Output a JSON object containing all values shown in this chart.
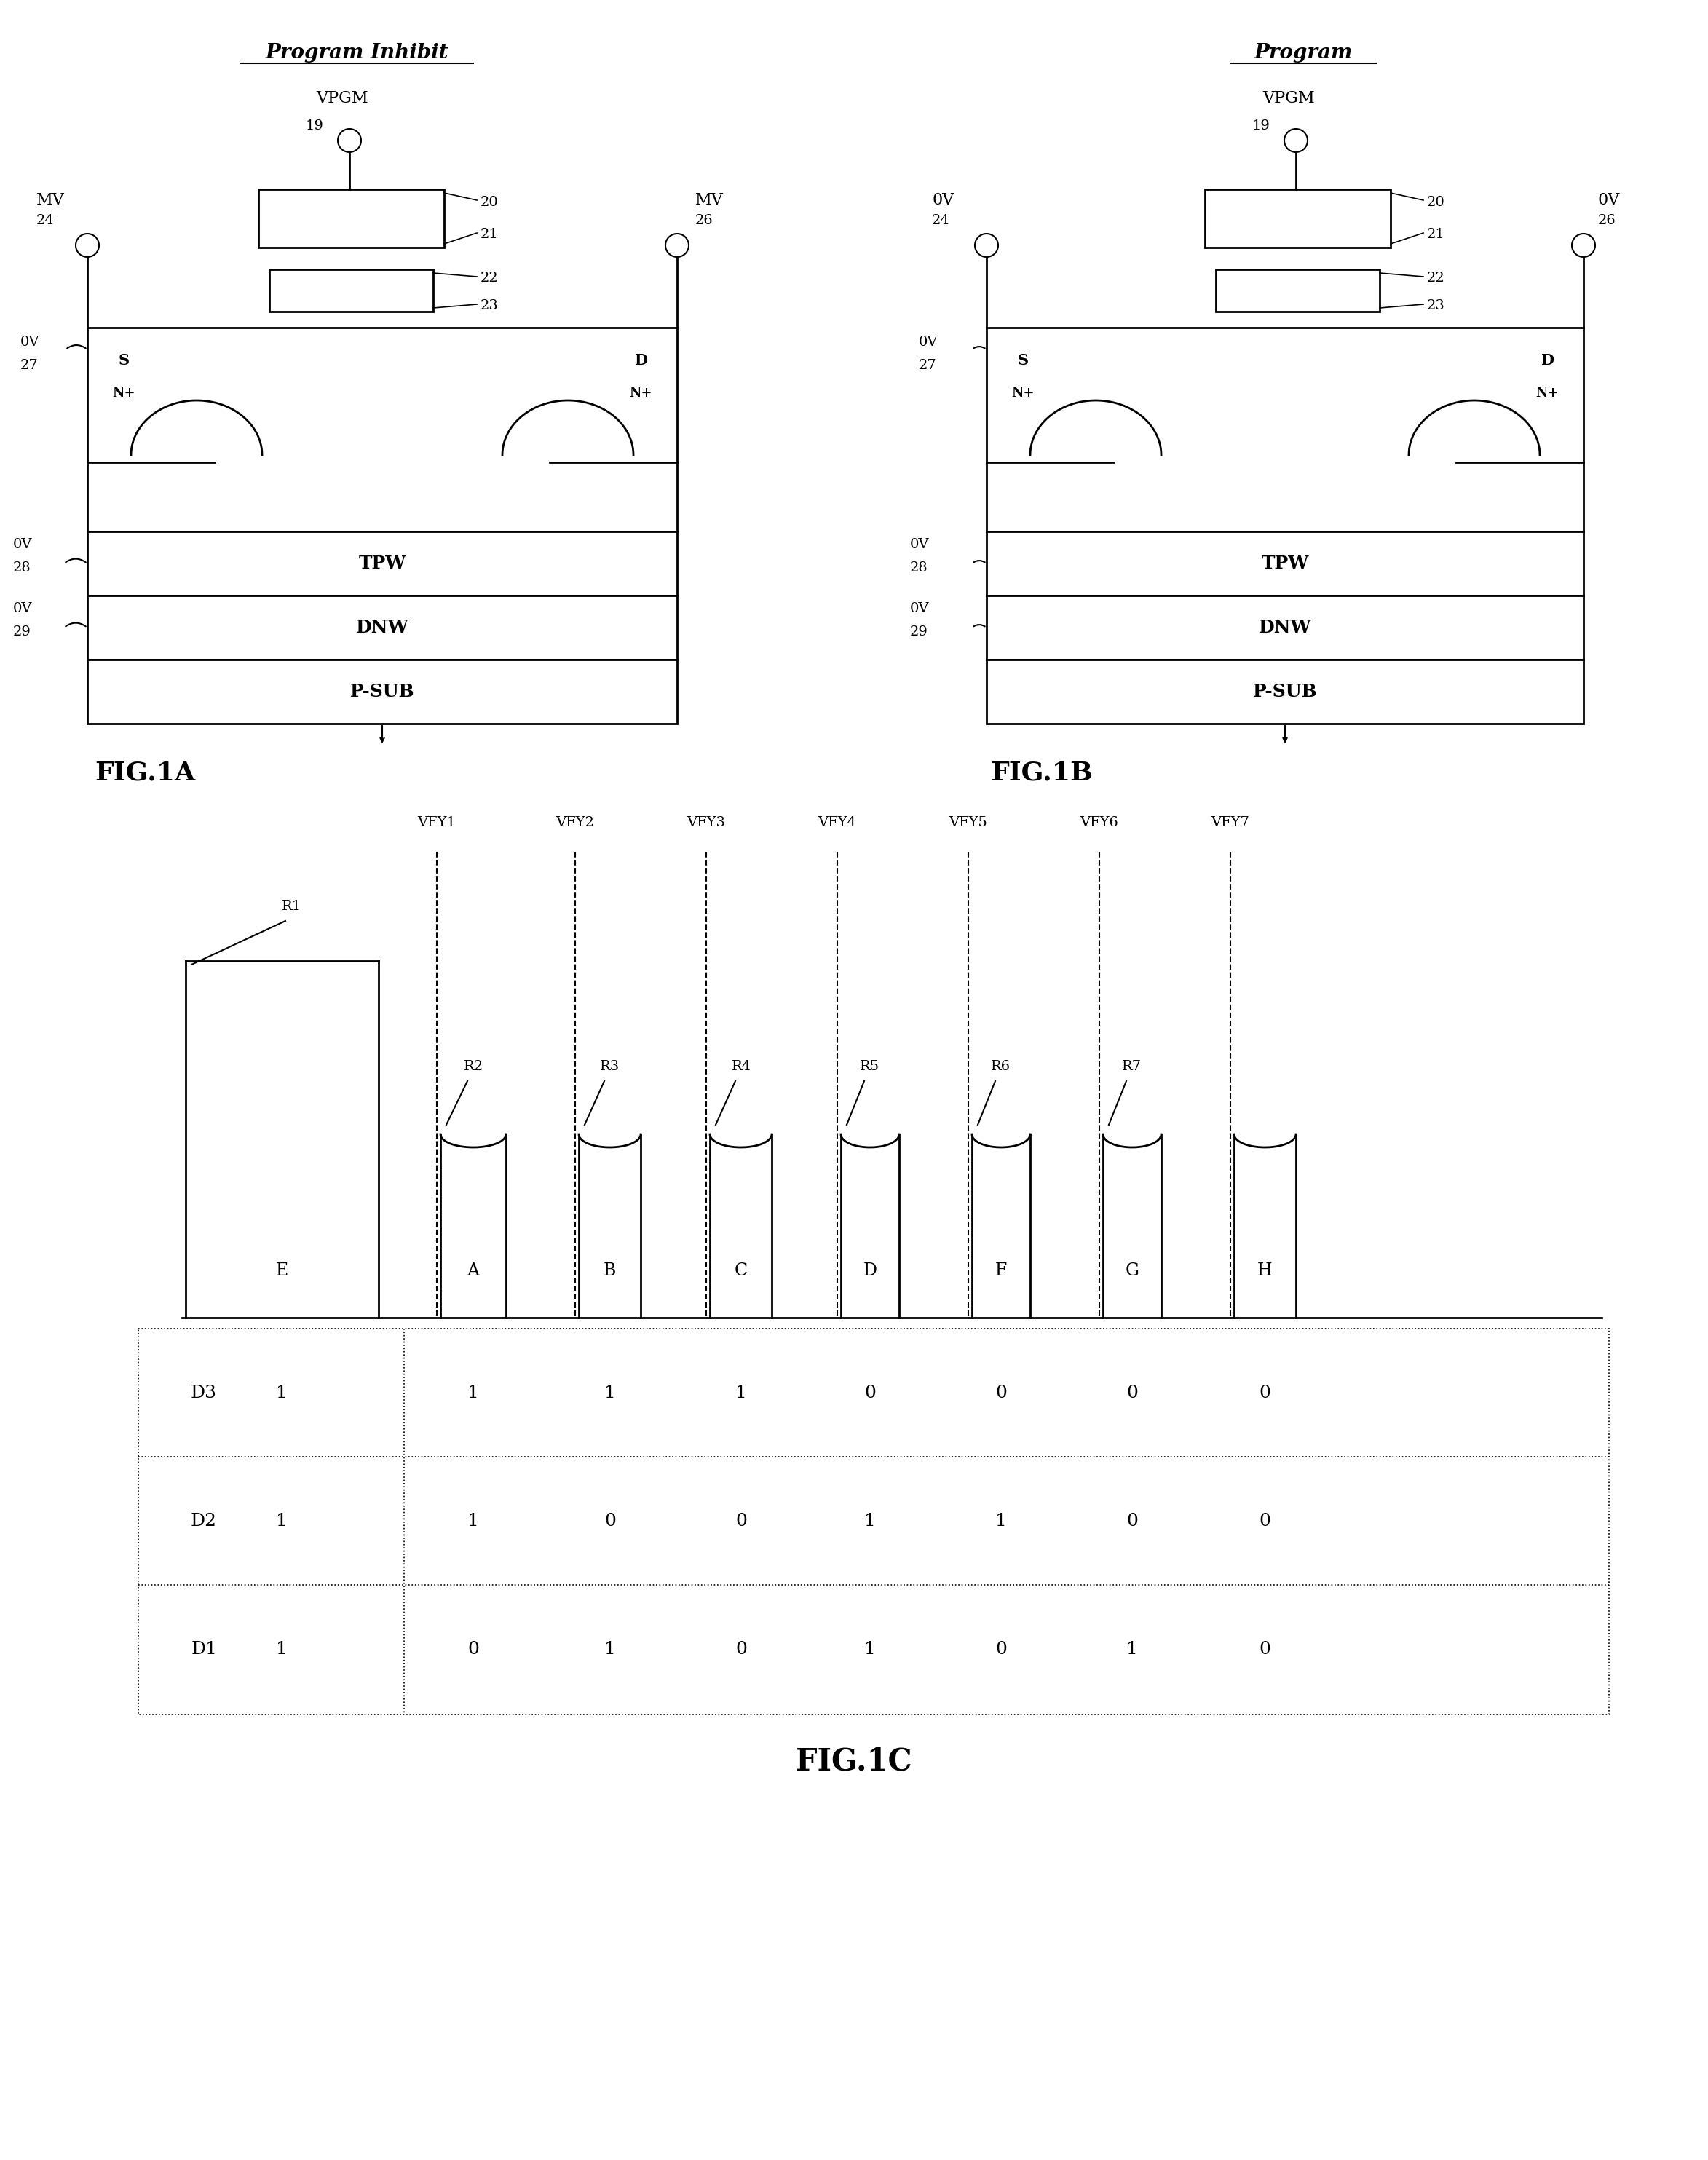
{
  "fig1a_title": "Program Inhibit",
  "fig1b_title": "Program",
  "fig1c_title": "FIG.1C",
  "fig1a_label": "FIG.1A",
  "fig1b_label": "FIG.1B",
  "bg_color": "#ffffff",
  "line_color": "#000000",
  "vpgm_label": "VPGM",
  "node19": "19",
  "node20": "20",
  "node21": "21",
  "node22": "22",
  "node23": "23",
  "node24": "24",
  "node26": "26",
  "node27": "27",
  "node28": "28",
  "node29": "29",
  "mv_label": "MV",
  "ov_label": "0V",
  "tpw_label": "TPW",
  "dnw_label": "DNW",
  "psub_label": "P-SUB",
  "s_label": "S",
  "d_label": "D",
  "nplus_label": "N+",
  "vfy_labels": [
    "VFY1",
    "VFY2",
    "VFY3",
    "VFY4",
    "VFY5",
    "VFY6",
    "VFY7"
  ],
  "pulse_labels": [
    "R1",
    "R2",
    "R3",
    "R4",
    "R5",
    "R6",
    "R7"
  ],
  "region_labels": [
    "E",
    "A",
    "B",
    "C",
    "D",
    "F",
    "G",
    "H"
  ],
  "d3_row": [
    "1",
    "1",
    "1",
    "1",
    "0",
    "0",
    "0",
    "0"
  ],
  "d2_row": [
    "1",
    "1",
    "0",
    "0",
    "1",
    "1",
    "0",
    "0"
  ],
  "d1_row": [
    "1",
    "0",
    "1",
    "0",
    "1",
    "0",
    "1",
    "0"
  ]
}
